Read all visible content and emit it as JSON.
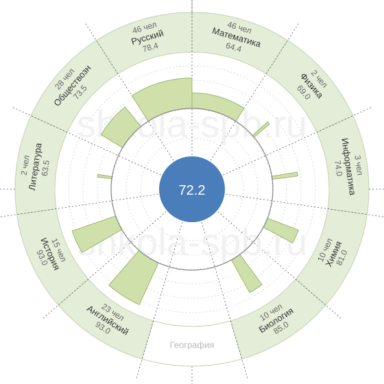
{
  "watermark": "shkola-spb.ru",
  "colors": {
    "ring": "#e4edd8",
    "ring_empty": "#ffffff",
    "ring_line": "#c9d6b8",
    "bar_fill": "#cfe0ab",
    "bar_stroke": "#9db36c",
    "center_fill": "#4a7eba",
    "center_text": "#ffffff",
    "subject_text": "#333333",
    "stat_text": "#666666",
    "empty_text": "#b9b9b9",
    "guide": "#555555",
    "grid": "#cccccc"
  },
  "chart_data": {
    "type": "radial-bar",
    "center_label": "72.2",
    "max_value": 100,
    "sectors": [
      {
        "subject": "Математика",
        "count_label": "46 чел",
        "score_label": "64.4",
        "score": 64.4,
        "count": 46
      },
      {
        "subject": "Физика",
        "count_label": "2 чел",
        "score_label": "69.0",
        "score": 69.0,
        "count": 2
      },
      {
        "subject": "Информатика",
        "count_label": "3 чел",
        "score_label": "74.0",
        "score": 74.0,
        "count": 3
      },
      {
        "subject": "Химия",
        "count_label": "10 чел",
        "score_label": "81.0",
        "score": 81.0,
        "count": 10
      },
      {
        "subject": "Биология",
        "count_label": "10 чел",
        "score_label": "85.0",
        "score": 85.0,
        "count": 10
      },
      {
        "subject": "География",
        "count_label": "",
        "score_label": "",
        "score": null,
        "count": 0
      },
      {
        "subject": "Английский",
        "count_label": "23 чел",
        "score_label": "93.0",
        "score": 93.0,
        "count": 23
      },
      {
        "subject": "История",
        "count_label": "15 чел",
        "score_label": "93.0",
        "score": 93.0,
        "count": 15
      },
      {
        "subject": "Литература",
        "count_label": "2 чел",
        "score_label": "63.5",
        "score": 63.5,
        "count": 2
      },
      {
        "subject": "Обществозн",
        "count_label": "28 чел",
        "score_label": "73.5",
        "score": 73.5,
        "count": 28
      },
      {
        "subject": "Русский",
        "count_label": "46 чел",
        "score_label": "78.4",
        "score": 78.4,
        "count": 46
      }
    ]
  }
}
